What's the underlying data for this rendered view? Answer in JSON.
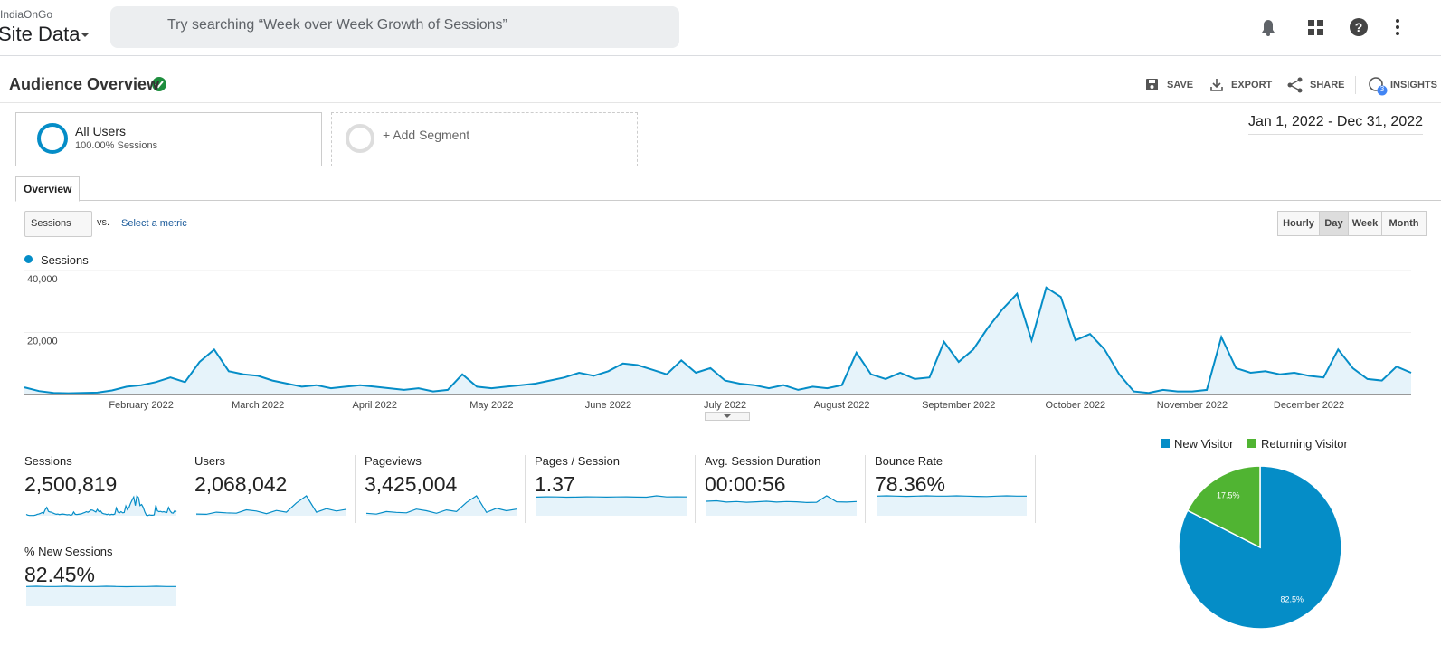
{
  "header": {
    "account": "IndiaOnGo",
    "property": "Site Data",
    "search_placeholder": "Try searching “Week over Week Growth of Sessions”"
  },
  "report": {
    "title": "Audience Overview",
    "actions": [
      "SAVE",
      "EXPORT",
      "SHARE",
      "INSIGHTS"
    ],
    "insights_badge": "3",
    "date_range": "Jan 1, 2022 - Dec 31, 2022"
  },
  "segments": [
    {
      "name": "All Users",
      "detail": "100.00% Sessions"
    },
    {
      "name": "+ Add Segment"
    }
  ],
  "tabs": [
    "Overview"
  ],
  "controls": {
    "metric": "Sessions",
    "vs": "vs.",
    "select_metric": "Select a metric",
    "granularity": [
      "Hourly",
      "Day",
      "Week",
      "Month"
    ],
    "active_granularity": 1
  },
  "chart_data": [
    {
      "type": "line",
      "ylim": [
        0,
        40000
      ],
      "yticks": [
        {
          "value": 20000,
          "label": "20,000"
        },
        {
          "value": 40000,
          "label": "40,000"
        }
      ],
      "grid": true,
      "categories": [
        null,
        null,
        null,
        null,
        null,
        null,
        null,
        null,
        "February 2022",
        null,
        null,
        null,
        null,
        null,
        null,
        null,
        "March 2022",
        null,
        null,
        null,
        null,
        null,
        null,
        null,
        "April 2022",
        null,
        null,
        null,
        null,
        null,
        null,
        null,
        "May 2022",
        null,
        null,
        null,
        null,
        null,
        null,
        null,
        "June 2022",
        null,
        null,
        null,
        null,
        null,
        null,
        null,
        "July 2022",
        null,
        null,
        null,
        null,
        null,
        null,
        null,
        "August 2022",
        null,
        null,
        null,
        null,
        null,
        null,
        null,
        "September 2022",
        null,
        null,
        null,
        null,
        null,
        null,
        null,
        "October 2022",
        null,
        null,
        null,
        null,
        null,
        null,
        null,
        "November 2022",
        null,
        null,
        null,
        null,
        null,
        null,
        null,
        "December 2022",
        null,
        null,
        null,
        null,
        null,
        null,
        null
      ],
      "series": [
        {
          "name": "Sessions",
          "color": "#058dc7",
          "values": [
            2300,
            1100,
            500,
            400,
            500,
            600,
            1300,
            2500,
            3000,
            4000,
            5500,
            4000,
            10500,
            14500,
            7500,
            6500,
            6000,
            4500,
            3500,
            2500,
            3000,
            2000,
            2500,
            3000,
            2500,
            2000,
            1500,
            2000,
            1000,
            1500,
            6500,
            2500,
            2000,
            2500,
            3000,
            3500,
            4500,
            5500,
            7000,
            6000,
            7500,
            10000,
            9500,
            8000,
            6500,
            11000,
            7000,
            8500,
            4500,
            3500,
            3000,
            2000,
            3000,
            1500,
            2500,
            2000,
            3000,
            13500,
            6500,
            5000,
            7000,
            5000,
            5500,
            17000,
            10500,
            14500,
            21500,
            27500,
            32500,
            17500,
            34500,
            31500,
            17500,
            19500,
            14500,
            6500,
            1000,
            500,
            1500,
            1000,
            1000,
            1500,
            18500,
            8500,
            7000,
            7500,
            6500,
            7000,
            6000,
            5500,
            14500,
            8500,
            5000,
            4500,
            9000,
            7000
          ]
        }
      ]
    },
    {
      "type": "pie",
      "categories": [
        "New Visitor",
        "Returning Visitor"
      ],
      "values": [
        82.5,
        17.5
      ],
      "value_labels": [
        "82.5%",
        "17.5%"
      ],
      "colors": [
        "#058dc7",
        "#50b432"
      ],
      "legend": "top"
    }
  ],
  "metrics": [
    {
      "label": "Sessions",
      "value": "2,500,819"
    },
    {
      "label": "Users",
      "value": "2,068,042",
      "sparkline": [
        1500,
        1200,
        3000,
        2500,
        2200,
        5000,
        4000,
        1800,
        4500,
        3000,
        11000,
        17000,
        3000,
        6000,
        4000,
        5500
      ]
    },
    {
      "label": "Pageviews",
      "value": "3,425,004",
      "sparkline": [
        3000,
        2000,
        5000,
        4000,
        3500,
        8000,
        6000,
        3000,
        7000,
        5000,
        16000,
        24000,
        4000,
        9000,
        6000,
        8000
      ]
    },
    {
      "label": "Pages / Session",
      "value": "1.37",
      "sparkline": [
        1.36,
        1.38,
        1.37,
        1.35,
        1.36,
        1.38,
        1.37,
        1.36,
        1.37,
        1.38,
        1.36,
        1.35,
        1.45,
        1.37,
        1.38,
        1.37
      ]
    },
    {
      "label": "Avg. Session Duration",
      "value": "00:00:56",
      "sparkline": [
        58,
        60,
        55,
        57,
        54,
        56,
        58,
        55,
        57,
        56,
        53,
        54,
        80,
        56,
        55,
        57
      ]
    },
    {
      "label": "Bounce Rate",
      "value": "78.36%",
      "sparkline": [
        78,
        79,
        78,
        77,
        78,
        79,
        78,
        78,
        79,
        78,
        77,
        76,
        78,
        79,
        78,
        78
      ]
    },
    {
      "label": "% New Sessions",
      "value": "82.45%",
      "sparkline": [
        82,
        83,
        82,
        82,
        83,
        82,
        82,
        82,
        83,
        82,
        81,
        82,
        82,
        83,
        82,
        82
      ]
    }
  ]
}
